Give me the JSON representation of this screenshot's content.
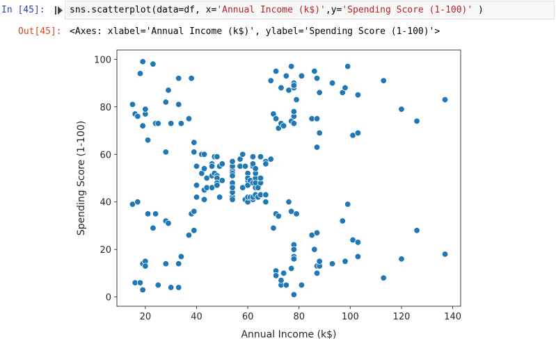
{
  "cell": {
    "in_prompt": "In [45]:",
    "code_prefix": "sns.scatterplot(data=df, x=",
    "code_x_arg": "'Annual Income (k$)'",
    "code_comma": ",y=",
    "code_y_arg": "'Spending Score (1-100)'",
    "code_suffix": " )",
    "out_prompt": "Out[45]:",
    "out_text": "<Axes: xlabel='Annual Income (k$)', ylabel='Spending Score (1-100)'>"
  },
  "colors": {
    "marker": "#1f77b4",
    "marker_edge": "#ffffff"
  },
  "chart_data": {
    "type": "scatter",
    "title": "",
    "xlabel": "Annual Income (k$)",
    "ylabel": "Spending Score (1-100)",
    "xlim": [
      8.9,
      143.1
    ],
    "ylim": [
      -3.9,
      103.9
    ],
    "xticks": [
      20,
      40,
      60,
      80,
      100,
      120,
      140
    ],
    "yticks": [
      0,
      20,
      40,
      60,
      80,
      100
    ],
    "grid": false,
    "points": [
      [
        15,
        39
      ],
      [
        15,
        81
      ],
      [
        16,
        6
      ],
      [
        16,
        77
      ],
      [
        17,
        40
      ],
      [
        17,
        76
      ],
      [
        18,
        6
      ],
      [
        18,
        94
      ],
      [
        19,
        3
      ],
      [
        19,
        72
      ],
      [
        19,
        14
      ],
      [
        19,
        99
      ],
      [
        20,
        15
      ],
      [
        20,
        77
      ],
      [
        20,
        13
      ],
      [
        20,
        79
      ],
      [
        21,
        35
      ],
      [
        21,
        66
      ],
      [
        23,
        29
      ],
      [
        23,
        98
      ],
      [
        24,
        35
      ],
      [
        24,
        73
      ],
      [
        25,
        5
      ],
      [
        25,
        73
      ],
      [
        28,
        14
      ],
      [
        28,
        82
      ],
      [
        28,
        32
      ],
      [
        28,
        61
      ],
      [
        29,
        31
      ],
      [
        29,
        87
      ],
      [
        30,
        4
      ],
      [
        30,
        73
      ],
      [
        33,
        4
      ],
      [
        33,
        92
      ],
      [
        33,
        14
      ],
      [
        33,
        81
      ],
      [
        34,
        17
      ],
      [
        34,
        73
      ],
      [
        37,
        26
      ],
      [
        37,
        75
      ],
      [
        38,
        35
      ],
      [
        38,
        92
      ],
      [
        39,
        36
      ],
      [
        39,
        61
      ],
      [
        39,
        28
      ],
      [
        39,
        65
      ],
      [
        40,
        55
      ],
      [
        40,
        47
      ],
      [
        40,
        42
      ],
      [
        40,
        42
      ],
      [
        42,
        52
      ],
      [
        42,
        60
      ],
      [
        43,
        54
      ],
      [
        43,
        60
      ],
      [
        43,
        45
      ],
      [
        43,
        41
      ],
      [
        44,
        50
      ],
      [
        44,
        46
      ],
      [
        46,
        51
      ],
      [
        46,
        46
      ],
      [
        46,
        56
      ],
      [
        46,
        55
      ],
      [
        47,
        52
      ],
      [
        47,
        59
      ],
      [
        48,
        51
      ],
      [
        48,
        59
      ],
      [
        48,
        50
      ],
      [
        48,
        48
      ],
      [
        48,
        59
      ],
      [
        48,
        47
      ],
      [
        49,
        55
      ],
      [
        49,
        42
      ],
      [
        50,
        49
      ],
      [
        50,
        56
      ],
      [
        54,
        47
      ],
      [
        54,
        54
      ],
      [
        54,
        53
      ],
      [
        54,
        48
      ],
      [
        54,
        52
      ],
      [
        54,
        42
      ],
      [
        54,
        51
      ],
      [
        54,
        55
      ],
      [
        54,
        41
      ],
      [
        54,
        44
      ],
      [
        54,
        57
      ],
      [
        54,
        46
      ],
      [
        57,
        58
      ],
      [
        57,
        55
      ],
      [
        58,
        60
      ],
      [
        58,
        46
      ],
      [
        59,
        55
      ],
      [
        59,
        41
      ],
      [
        60,
        49
      ],
      [
        60,
        40
      ],
      [
        60,
        42
      ],
      [
        60,
        52
      ],
      [
        60,
        47
      ],
      [
        60,
        50
      ],
      [
        61,
        42
      ],
      [
        61,
        49
      ],
      [
        62,
        41
      ],
      [
        62,
        48
      ],
      [
        62,
        59
      ],
      [
        62,
        55
      ],
      [
        62,
        56
      ],
      [
        62,
        42
      ],
      [
        63,
        50
      ],
      [
        63,
        46
      ],
      [
        63,
        43
      ],
      [
        63,
        48
      ],
      [
        63,
        52
      ],
      [
        63,
        54
      ],
      [
        64,
        42
      ],
      [
        64,
        46
      ],
      [
        65,
        48
      ],
      [
        65,
        50
      ],
      [
        65,
        43
      ],
      [
        65,
        59
      ],
      [
        67,
        43
      ],
      [
        67,
        57
      ],
      [
        67,
        56
      ],
      [
        67,
        40
      ],
      [
        69,
        58
      ],
      [
        69,
        91
      ],
      [
        70,
        29
      ],
      [
        70,
        77
      ],
      [
        71,
        35
      ],
      [
        71,
        95
      ],
      [
        71,
        11
      ],
      [
        71,
        75
      ],
      [
        71,
        9
      ],
      [
        71,
        75
      ],
      [
        72,
        34
      ],
      [
        72,
        71
      ],
      [
        73,
        5
      ],
      [
        73,
        88
      ],
      [
        73,
        7
      ],
      [
        73,
        73
      ],
      [
        74,
        10
      ],
      [
        74,
        72
      ],
      [
        75,
        5
      ],
      [
        75,
        93
      ],
      [
        76,
        40
      ],
      [
        76,
        87
      ],
      [
        77,
        12
      ],
      [
        77,
        97
      ],
      [
        77,
        36
      ],
      [
        77,
        74
      ],
      [
        78,
        22
      ],
      [
        78,
        90
      ],
      [
        78,
        17
      ],
      [
        78,
        88
      ],
      [
        78,
        20
      ],
      [
        78,
        76
      ],
      [
        78,
        16
      ],
      [
        78,
        89
      ],
      [
        78,
        1
      ],
      [
        78,
        78
      ],
      [
        78,
        1
      ],
      [
        78,
        73
      ],
      [
        79,
        35
      ],
      [
        79,
        83
      ],
      [
        81,
        5
      ],
      [
        81,
        93
      ],
      [
        85,
        26
      ],
      [
        85,
        75
      ],
      [
        86,
        20
      ],
      [
        86,
        95
      ],
      [
        87,
        27
      ],
      [
        87,
        63
      ],
      [
        87,
        13
      ],
      [
        87,
        75
      ],
      [
        87,
        10
      ],
      [
        87,
        92
      ],
      [
        88,
        13
      ],
      [
        88,
        86
      ],
      [
        88,
        15
      ],
      [
        88,
        69
      ],
      [
        93,
        14
      ],
      [
        93,
        90
      ],
      [
        97,
        32
      ],
      [
        97,
        86
      ],
      [
        98,
        15
      ],
      [
        98,
        88
      ],
      [
        99,
        39
      ],
      [
        99,
        97
      ],
      [
        101,
        24
      ],
      [
        101,
        68
      ],
      [
        103,
        17
      ],
      [
        103,
        85
      ],
      [
        103,
        23
      ],
      [
        103,
        69
      ],
      [
        113,
        8
      ],
      [
        113,
        91
      ],
      [
        120,
        16
      ],
      [
        120,
        79
      ],
      [
        126,
        28
      ],
      [
        126,
        74
      ],
      [
        137,
        18
      ],
      [
        137,
        83
      ]
    ]
  }
}
